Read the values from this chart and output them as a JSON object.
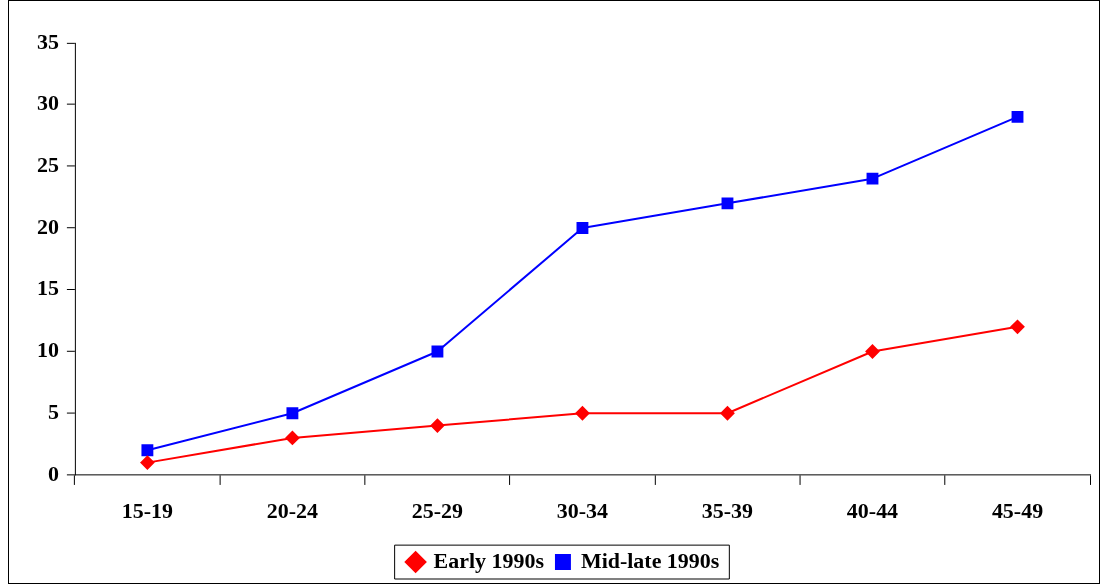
{
  "chart_data": {
    "type": "line",
    "categories": [
      "15-19",
      "20-24",
      "25-29",
      "30-34",
      "35-39",
      "40-44",
      "45-49"
    ],
    "series": [
      {
        "name": "Early 1990s",
        "color": "#ff0000",
        "marker": "diamond",
        "values": [
          1,
          3,
          4,
          5,
          5,
          10,
          12
        ]
      },
      {
        "name": "Mid-late 1990s",
        "color": "#0000ff",
        "marker": "square",
        "values": [
          2,
          5,
          10,
          20,
          22,
          24,
          29
        ]
      }
    ],
    "ylim": [
      0,
      35
    ],
    "yticks": [
      0,
      5,
      10,
      15,
      20,
      25,
      30,
      35
    ],
    "grid": false,
    "legend": "bottom",
    "line_style": "solid"
  }
}
